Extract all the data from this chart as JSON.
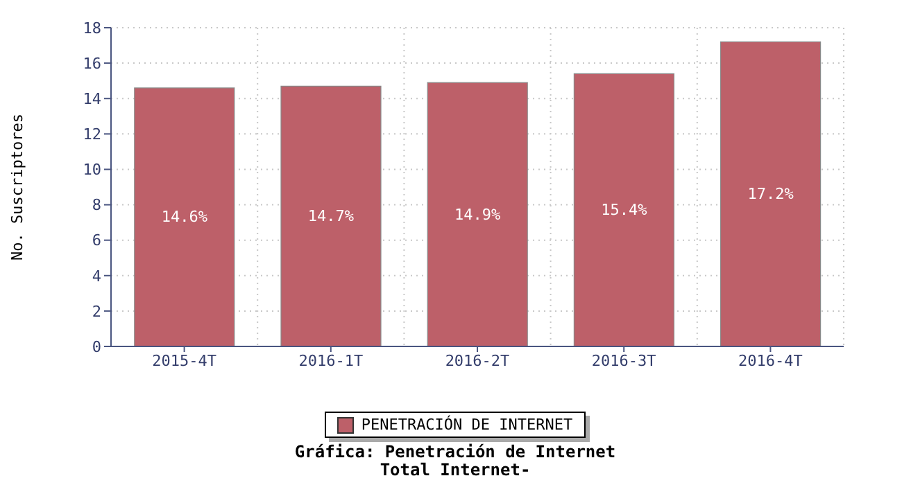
{
  "chart_data": {
    "type": "bar",
    "title": "Gráfica: Penetración de Internet",
    "subtitle": "Total Internet-",
    "ylabel": "No. Suscriptores",
    "categories": [
      "2015-4T",
      "2016-1T",
      "2016-2T",
      "2016-3T",
      "2016-4T"
    ],
    "series": [
      {
        "name": "PENETRACIÓN DE INTERNET",
        "color": "#bd6069",
        "values": [
          14.6,
          14.7,
          14.9,
          15.4,
          17.2
        ],
        "value_labels": [
          "14.6%",
          "14.7%",
          "14.9%",
          "15.4%",
          "17.2%"
        ]
      }
    ],
    "ylim": [
      0,
      18
    ],
    "yticks": [
      0,
      2,
      4,
      6,
      8,
      10,
      12,
      14,
      16,
      18
    ],
    "grid": true,
    "legend": "bottom"
  }
}
